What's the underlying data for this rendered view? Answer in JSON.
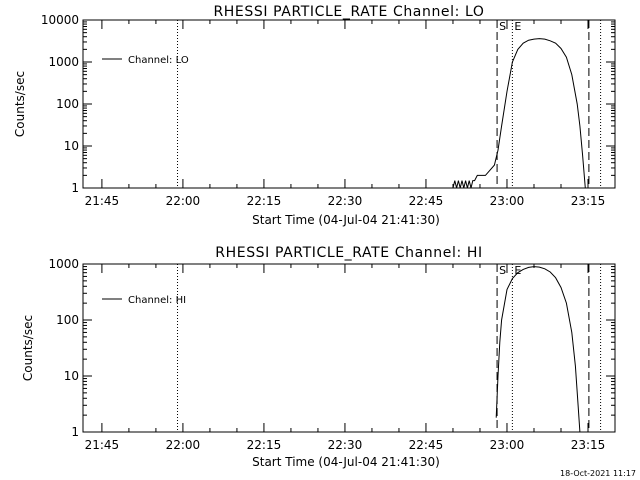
{
  "timestamp": "18-Oct-2021 11:17",
  "chart_data": [
    {
      "type": "line",
      "title": "RHESSI PARTICLE_RATE Channel: LO",
      "xlabel": "Start Time (04-Jul-04 21:41:30)",
      "ylabel": "Counts/sec",
      "y_scale": "log",
      "xlim": [
        "21:41:30",
        "23:20:00"
      ],
      "ylim": [
        1,
        10000
      ],
      "x_ticks": [
        "21:45",
        "22:00",
        "22:15",
        "22:30",
        "22:45",
        "23:00",
        "23:15"
      ],
      "y_ticks": [
        "1",
        "10",
        "100",
        "1000",
        "10000"
      ],
      "legend": "Channel: LO",
      "legend_position": "top-left",
      "markers": [
        {
          "label": "S",
          "time": "22:58:10",
          "style": "dashed"
        },
        {
          "label": "E",
          "time": "23:01:00",
          "style": "dotted"
        }
      ],
      "extra_lines": [
        {
          "time": "21:59:00",
          "style": "dotted"
        },
        {
          "time": "23:15:10",
          "style": "dashed"
        },
        {
          "time": "23:17:20",
          "style": "dotted"
        }
      ],
      "series": [
        {
          "points": [
            [
              "22:50:00",
              1
            ],
            [
              "22:50:20",
              1.5
            ],
            [
              "22:50:40",
              1
            ],
            [
              "22:51:00",
              1.5
            ],
            [
              "22:51:20",
              1
            ],
            [
              "22:51:40",
              1.5
            ],
            [
              "22:52:00",
              1
            ],
            [
              "22:52:20",
              1.5
            ],
            [
              "22:52:40",
              1
            ],
            [
              "22:53:00",
              1.5
            ],
            [
              "22:53:20",
              1
            ],
            [
              "22:53:40",
              1.5
            ],
            [
              "22:54:00",
              1.5
            ],
            [
              "22:54:30",
              2
            ],
            [
              "22:56:00",
              2
            ],
            [
              "22:56:40",
              2.5
            ],
            [
              "22:57:40",
              3.5
            ],
            [
              "22:58:20",
              8
            ],
            [
              "22:59:00",
              30
            ],
            [
              "23:00:00",
              200
            ],
            [
              "23:01:00",
              1000
            ],
            [
              "23:02:00",
              2000
            ],
            [
              "23:03:00",
              2800
            ],
            [
              "23:04:00",
              3300
            ],
            [
              "23:05:00",
              3500
            ],
            [
              "23:06:00",
              3600
            ],
            [
              "23:07:00",
              3500
            ],
            [
              "23:08:00",
              3200
            ],
            [
              "23:09:00",
              2800
            ],
            [
              "23:10:00",
              2100
            ],
            [
              "23:11:00",
              1300
            ],
            [
              "23:12:00",
              500
            ],
            [
              "23:13:00",
              100
            ],
            [
              "23:13:30",
              30
            ],
            [
              "23:14:00",
              6
            ],
            [
              "23:14:30",
              1
            ]
          ]
        }
      ]
    },
    {
      "type": "line",
      "title": "RHESSI PARTICLE_RATE Channel: HI",
      "xlabel": "Start Time (04-Jul-04 21:41:30)",
      "ylabel": "Counts/sec",
      "y_scale": "log",
      "xlim": [
        "21:41:30",
        "23:20:00"
      ],
      "ylim": [
        1,
        1000
      ],
      "x_ticks": [
        "21:45",
        "22:00",
        "22:15",
        "22:30",
        "22:45",
        "23:00",
        "23:15"
      ],
      "y_ticks": [
        "1",
        "10",
        "100",
        "1000"
      ],
      "legend": "Channel: HI",
      "legend_position": "top-left",
      "markers": [
        {
          "label": "S",
          "time": "22:58:10",
          "style": "dashed"
        },
        {
          "label": "E",
          "time": "23:01:00",
          "style": "dotted"
        }
      ],
      "extra_lines": [
        {
          "time": "21:59:00",
          "style": "dotted"
        },
        {
          "time": "23:15:10",
          "style": "dashed"
        },
        {
          "time": "23:17:20",
          "style": "dotted"
        }
      ],
      "series": [
        {
          "points": [
            [
              "22:58:00",
              1.8
            ],
            [
              "22:58:20",
              10
            ],
            [
              "22:58:40",
              40
            ],
            [
              "22:59:00",
              100
            ],
            [
              "23:00:00",
              350
            ],
            [
              "23:01:00",
              550
            ],
            [
              "23:02:00",
              700
            ],
            [
              "23:03:00",
              800
            ],
            [
              "23:04:00",
              870
            ],
            [
              "23:05:00",
              900
            ],
            [
              "23:06:00",
              880
            ],
            [
              "23:07:00",
              820
            ],
            [
              "23:08:00",
              720
            ],
            [
              "23:09:00",
              570
            ],
            [
              "23:10:00",
              380
            ],
            [
              "23:11:00",
              200
            ],
            [
              "23:12:00",
              60
            ],
            [
              "23:12:40",
              15
            ],
            [
              "23:13:10",
              3
            ],
            [
              "23:13:30",
              1
            ]
          ]
        }
      ]
    }
  ]
}
